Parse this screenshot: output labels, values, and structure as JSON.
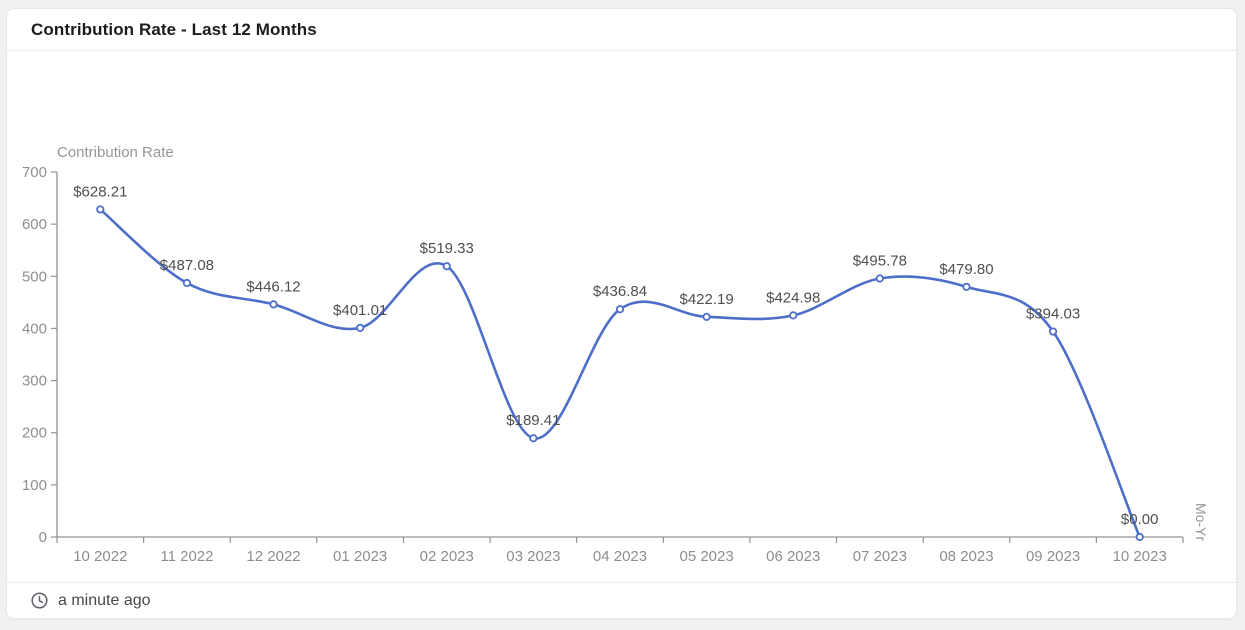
{
  "card": {
    "title": "Contribution Rate - Last 12 Months"
  },
  "footer": {
    "updated_text": "a minute ago"
  },
  "chart_data": {
    "type": "line",
    "title": "Contribution Rate",
    "xlabel": "Mo-Yr",
    "ylabel": "",
    "categories": [
      "10 2022",
      "11 2022",
      "12 2022",
      "01 2023",
      "02 2023",
      "03 2023",
      "04 2023",
      "05 2023",
      "06 2023",
      "07 2023",
      "08 2023",
      "09 2023",
      "10 2023"
    ],
    "values": [
      628.21,
      487.08,
      446.12,
      401.01,
      519.33,
      189.41,
      436.84,
      422.19,
      424.98,
      495.78,
      479.8,
      394.03,
      0.0
    ],
    "point_labels": [
      "$628.21",
      "$487.08",
      "$446.12",
      "$401.01",
      "$519.33",
      "$189.41",
      "$436.84",
      "$422.19",
      "$424.98",
      "$495.78",
      "$479.80",
      "$394.03",
      "$0.00"
    ],
    "y_ticks": [
      0,
      100,
      200,
      300,
      400,
      500,
      600,
      700
    ],
    "ylim": [
      0,
      700
    ],
    "smooth": true,
    "grid": false,
    "legend": "none",
    "colors": {
      "line": "#4e6fc9",
      "marker_fill": "#ffffff",
      "data_label": "#4f4f4f",
      "axis": "#8f9399",
      "tick_label": "#8e8e8e",
      "axis_title": "#969696"
    }
  }
}
